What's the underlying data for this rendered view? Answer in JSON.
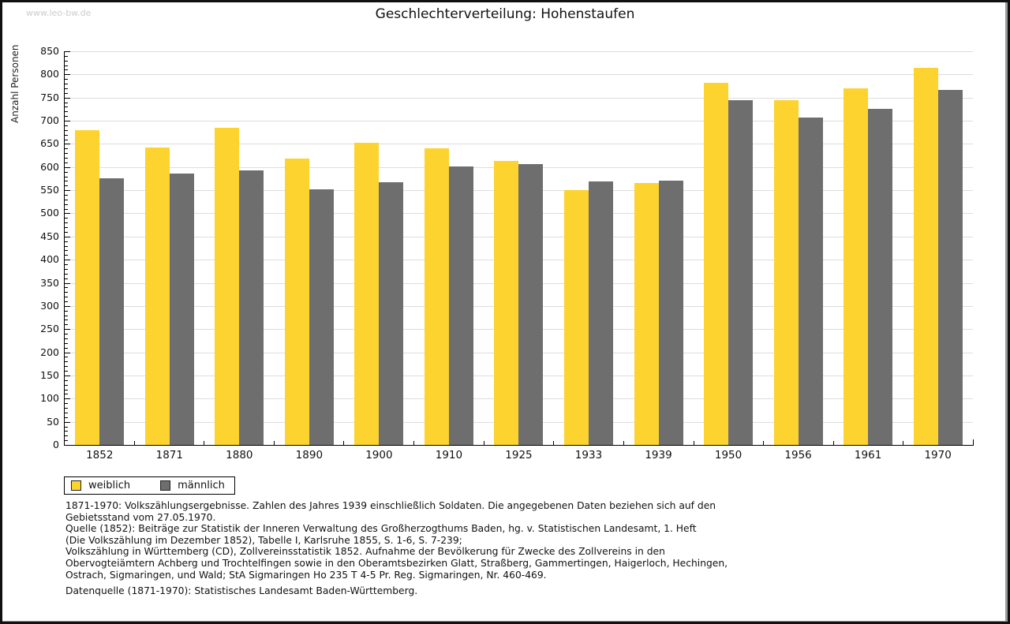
{
  "watermark": "www.leo-bw.de",
  "title": "Geschlechterverteilung: Hohenstaufen",
  "colors": {
    "weiblich": "#FCD32F",
    "maennlich": "#6E6E6E",
    "gridline": "#DDDDDD",
    "axis": "#000000",
    "watermark": "#CCCCCC"
  },
  "chart_data": {
    "type": "bar",
    "title": "Geschlechterverteilung: Hohenstaufen",
    "xlabel": "",
    "ylabel": "Anzahl Personen",
    "ylim": [
      0,
      850
    ],
    "ytick_step": 50,
    "yminor_step": 10,
    "grid": true,
    "legend_position": "bottom-left",
    "categories": [
      "1852",
      "1871",
      "1880",
      "1890",
      "1900",
      "1910",
      "1925",
      "1933",
      "1939",
      "1950",
      "1956",
      "1961",
      "1970"
    ],
    "series": [
      {
        "name": "weiblich",
        "color": "#FCD32F",
        "values": [
          680,
          642,
          684,
          618,
          652,
          641,
          614,
          551,
          566,
          782,
          745,
          770,
          815
        ]
      },
      {
        "name": "männlich",
        "color": "#6E6E6E",
        "values": [
          575,
          586,
          592,
          552,
          567,
          602,
          607,
          569,
          570,
          744,
          707,
          725,
          766
        ]
      }
    ]
  },
  "footnotes": [
    "1871-1970: Volkszählungsergebnisse. Zahlen des Jahres 1939 einschließlich Soldaten. Die angegebenen Daten beziehen sich auf den",
    "Gebietsstand vom 27.05.1970.",
    "Quelle (1852): Beiträge zur Statistik der Inneren Verwaltung des Großherzogthums Baden, hg. v. Statistischen Landesamt, 1. Heft",
    "(Die Volkszählung im Dezember 1852), Tabelle I, Karlsruhe 1855, S. 1-6, S. 7-239;",
    "Volkszählung in Württemberg (CD), Zollvereinsstatistik 1852. Aufnahme der Bevölkerung für Zwecke des Zollvereins in den",
    "Obervogteiämtern Achberg und Trochtelfingen sowie in den Oberamtsbezirken Glatt, Straßberg, Gammertingen, Haigerloch, Hechingen,",
    "Ostrach, Sigmaringen, und Wald; StA Sigmaringen Ho 235 T 4-5 Pr. Reg. Sigmaringen, Nr. 460-469."
  ],
  "datasource": "Datenquelle (1871-1970): Statistisches Landesamt Baden-Württemberg."
}
